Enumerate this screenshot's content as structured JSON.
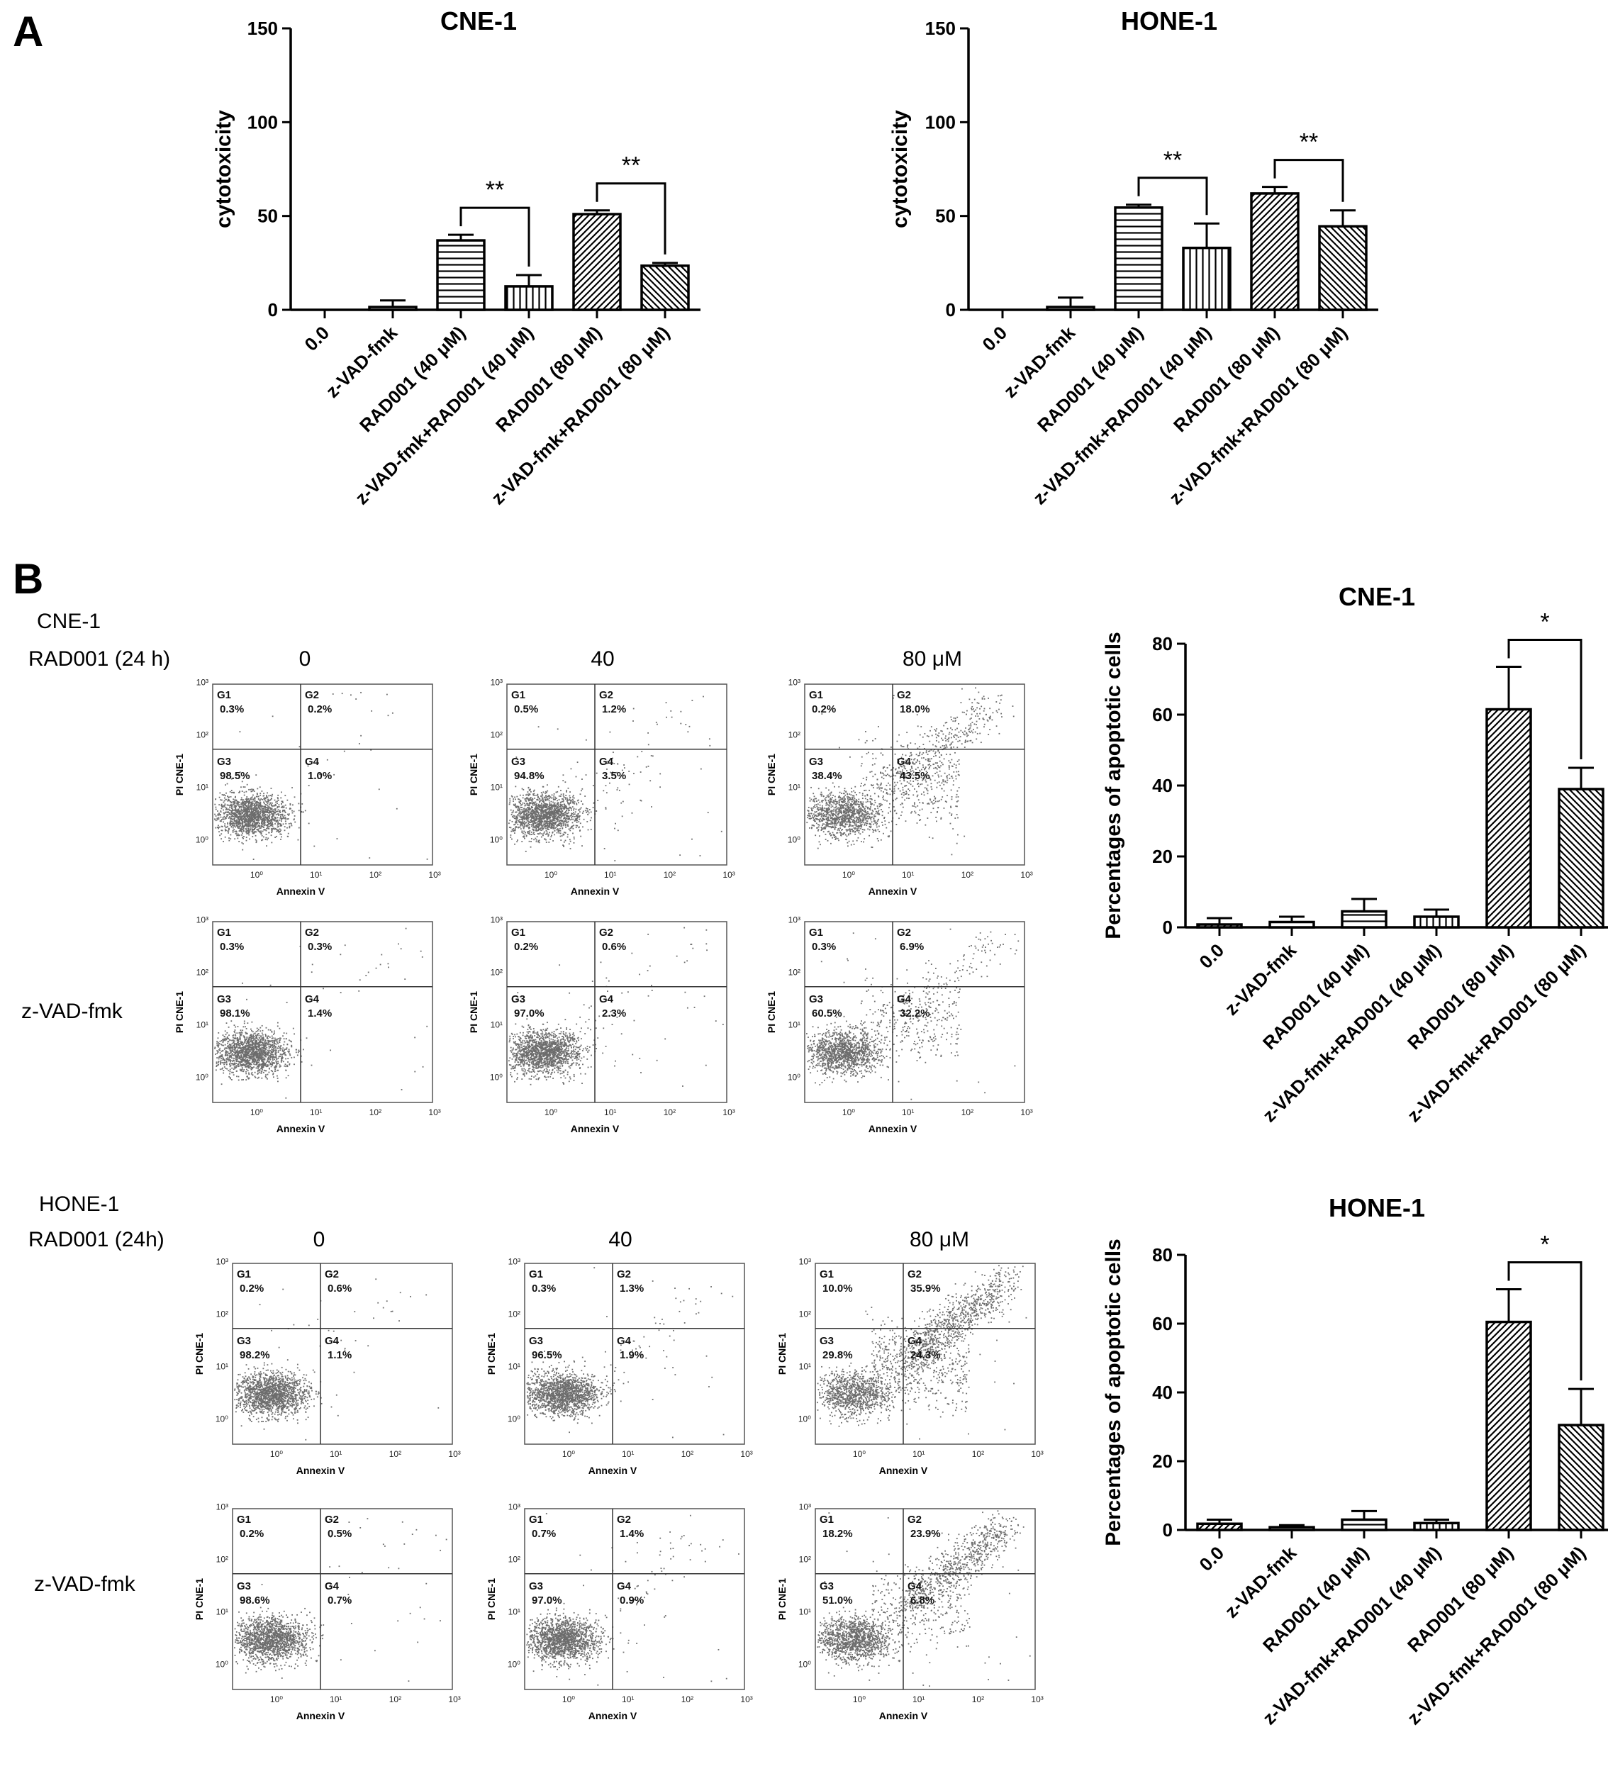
{
  "panels": {
    "a": "A",
    "b": "B"
  },
  "panelB": {
    "cne": {
      "cell_label": "CNE-1",
      "treat_label": "RAD001 (24 h)",
      "row2_label": "z-VAD-fmk",
      "col_labels": [
        "0",
        "40",
        "80 μM"
      ]
    },
    "hone": {
      "cell_label": "HONE-1",
      "treat_label": "RAD001 (24h)",
      "row2_label": "z-VAD-fmk",
      "col_labels": [
        "0",
        "40",
        "80 μM"
      ]
    }
  },
  "flow": {
    "x_label": "Annexin V",
    "y_label": "PI CNE-1",
    "gate_labels": [
      "G1",
      "G2",
      "G3",
      "G4"
    ],
    "tick_labels": [
      "10⁰",
      "10¹",
      "10²",
      "10³"
    ],
    "plots": [
      {
        "g1": "0.3%",
        "g2": "0.2%",
        "g3": "98.5%",
        "g4": "1.0%",
        "upper_density": 0.005,
        "spread": 0.0
      },
      {
        "g1": "0.5%",
        "g2": "1.2%",
        "g3": "94.8%",
        "g4": "3.5%",
        "upper_density": 0.015,
        "spread": 0.05
      },
      {
        "g1": "0.2%",
        "g2": "18.0%",
        "g3": "38.4%",
        "g4": "43.5%",
        "upper_density": 0.18,
        "spread": 0.45
      },
      {
        "g1": "0.3%",
        "g2": "0.3%",
        "g3": "98.1%",
        "g4": "1.4%",
        "upper_density": 0.005,
        "spread": 0.0
      },
      {
        "g1": "0.2%",
        "g2": "0.6%",
        "g3": "97.0%",
        "g4": "2.3%",
        "upper_density": 0.008,
        "spread": 0.03
      },
      {
        "g1": "0.3%",
        "g2": "6.9%",
        "g3": "60.5%",
        "g4": "32.2%",
        "upper_density": 0.07,
        "spread": 0.32
      },
      {
        "g1": "0.2%",
        "g2": "0.6%",
        "g3": "98.2%",
        "g4": "1.1%",
        "upper_density": 0.008,
        "spread": 0.0
      },
      {
        "g1": "0.3%",
        "g2": "1.3%",
        "g3": "96.5%",
        "g4": "1.9%",
        "upper_density": 0.015,
        "spread": 0.02
      },
      {
        "g1": "10.0%",
        "g2": "35.9%",
        "g3": "29.8%",
        "g4": "24.3%",
        "upper_density": 0.46,
        "spread": 0.6
      },
      {
        "g1": "0.2%",
        "g2": "0.5%",
        "g3": "98.6%",
        "g4": "0.7%",
        "upper_density": 0.006,
        "spread": 0.0
      },
      {
        "g1": "0.7%",
        "g2": "1.4%",
        "g3": "97.0%",
        "g4": "0.9%",
        "upper_density": 0.02,
        "spread": 0.01
      },
      {
        "g1": "18.2%",
        "g2": "23.9%",
        "g3": "51.0%",
        "g4": "6.8%",
        "upper_density": 0.42,
        "spread": 0.3
      }
    ]
  },
  "chart_data": [
    {
      "type": "bar",
      "title": "CNE-1",
      "ylabel": "cytotoxicity",
      "xlabel": "",
      "ylim": [
        0,
        150
      ],
      "yticks": [
        "0",
        "50",
        "100",
        "150"
      ],
      "categories": [
        "0.0",
        "z-VAD-fmk",
        "RAD001 (40 μM)",
        "z-VAD-fmk+RAD001 (40 μM)",
        "RAD001 (80 μM)",
        "z-VAD-fmk+RAD001 (80 μM)"
      ],
      "values": [
        0,
        1.5,
        37,
        12.5,
        51,
        23.5
      ],
      "errors": [
        0,
        3.5,
        3,
        6,
        2,
        1.5
      ],
      "patterns": [
        "none",
        "none",
        "hlines",
        "vlines",
        "diag",
        "diag-back"
      ],
      "significance": [
        {
          "from": 2,
          "to": 3,
          "label": "**"
        },
        {
          "from": 4,
          "to": 5,
          "label": "**"
        }
      ]
    },
    {
      "type": "bar",
      "title": "HONE-1",
      "ylabel": "cytotoxicity",
      "xlabel": "",
      "ylim": [
        0,
        150
      ],
      "yticks": [
        "0",
        "50",
        "100",
        "150"
      ],
      "categories": [
        "0.0",
        "z-VAD-fmk",
        "RAD001 (40 μM)",
        "z-VAD-fmk+RAD001 (40 μM)",
        "RAD001 (80 μM)",
        "z-VAD-fmk+RAD001 (80 μM)"
      ],
      "values": [
        0,
        1.5,
        54.5,
        33,
        62,
        44.5
      ],
      "errors": [
        0,
        5,
        1.5,
        13,
        3.5,
        8.5
      ],
      "patterns": [
        "none",
        "none",
        "hlines",
        "vlines",
        "diag",
        "diag-back"
      ],
      "significance": [
        {
          "from": 2,
          "to": 3,
          "label": "**"
        },
        {
          "from": 4,
          "to": 5,
          "label": "**"
        }
      ]
    },
    {
      "type": "bar",
      "title": "CNE-1",
      "ylabel": "Percentages of apoptotic cells",
      "xlabel": "",
      "ylim": [
        0,
        80
      ],
      "yticks": [
        "0",
        "20",
        "40",
        "60",
        "80"
      ],
      "categories": [
        "0.0",
        "z-VAD-fmk",
        "RAD001 (40 μM)",
        "z-VAD-fmk+RAD001 (40 μM)",
        "RAD001 (80 μM)",
        "z-VAD-fmk+RAD001 (80 μM)"
      ],
      "values": [
        0.8,
        1.5,
        4.5,
        3,
        61.5,
        39
      ],
      "errors": [
        1.8,
        1.5,
        3.5,
        2,
        12,
        6
      ],
      "patterns": [
        "diag",
        "hlines",
        "hlines",
        "vlines",
        "diag",
        "diag-back"
      ],
      "significance": [
        {
          "from": 4,
          "to": 5,
          "label": "*"
        }
      ]
    },
    {
      "type": "bar",
      "title": "HONE-1",
      "ylabel": "Percentages of apoptotic cells",
      "xlabel": "",
      "ylim": [
        0,
        80
      ],
      "yticks": [
        "0",
        "20",
        "40",
        "60",
        "80"
      ],
      "categories": [
        "0.0",
        "z-VAD-fmk",
        "RAD001 (40 μM)",
        "z-VAD-fmk+RAD001 (40 μM)",
        "RAD001 (80 μM)",
        "z-VAD-fmk+RAD001 (80 μM)"
      ],
      "values": [
        1.8,
        0.8,
        3,
        2,
        60.5,
        30.5
      ],
      "errors": [
        1.2,
        0.6,
        2.5,
        1,
        9.5,
        10.5
      ],
      "patterns": [
        "diag",
        "hlines",
        "hlines",
        "vlines",
        "diag",
        "diag-back"
      ],
      "significance": [
        {
          "from": 4,
          "to": 5,
          "label": "*"
        }
      ]
    }
  ]
}
